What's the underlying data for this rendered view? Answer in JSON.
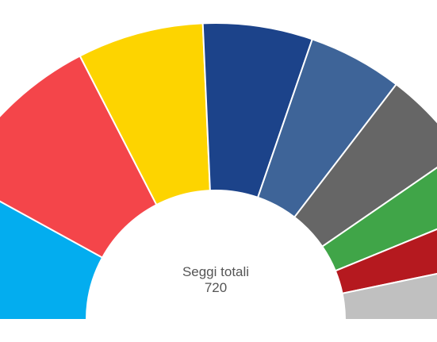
{
  "chart_data": {
    "type": "pie",
    "variant": "parliament-half-donut",
    "center_label": "Seggi totali",
    "total": "720",
    "series": [
      {
        "value": 115,
        "color": "#03ADEF"
      },
      {
        "value": 136,
        "color": "#F4454A"
      },
      {
        "value": 99,
        "color": "#FDD400"
      },
      {
        "value": 86,
        "color": "#1C438A"
      },
      {
        "value": 74,
        "color": "#3E6498"
      },
      {
        "value": 72,
        "color": "#666666"
      },
      {
        "value": 49,
        "color": "#40A548"
      },
      {
        "value": 42,
        "color": "#B5191F"
      },
      {
        "value": 47,
        "color": "#C0C0C0"
      }
    ],
    "legend": "none"
  }
}
